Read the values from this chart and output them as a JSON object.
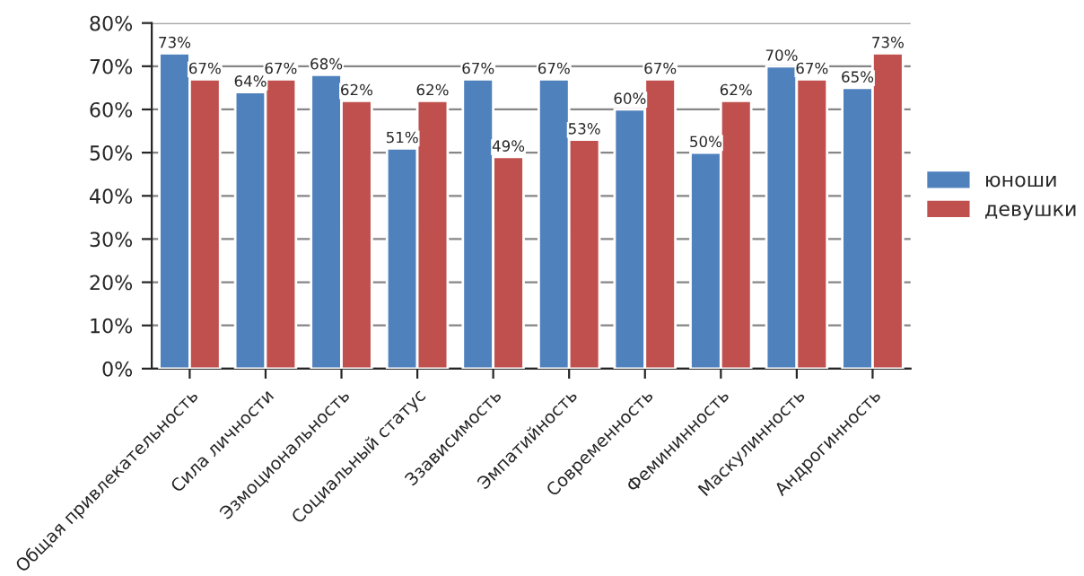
{
  "chart_data": {
    "type": "bar",
    "categories": [
      "Общая привлекательность",
      "Сила личности",
      "Эзмоциональность",
      "Социальный статус",
      "Ззависимость",
      "Эмпатийность",
      "Современность",
      "Фемининность",
      "Маскулинность",
      "Андрогинность"
    ],
    "series": [
      {
        "name": "юноши",
        "color": "#4f81bd",
        "values": [
          73,
          64,
          68,
          51,
          67,
          67,
          60,
          50,
          70,
          65
        ],
        "value_labels": [
          "73%",
          "64%",
          "68%",
          "51%",
          "67%",
          "67%",
          "60%",
          "50%",
          "70%",
          "65%"
        ]
      },
      {
        "name": "девушки",
        "color": "#c0504d",
        "values": [
          67,
          67,
          62,
          62,
          49,
          53,
          67,
          62,
          67,
          73
        ],
        "value_labels": [
          "67%",
          "67%",
          "62%",
          "62%",
          "49%",
          "53%",
          "67%",
          "62%",
          "67%",
          "73%"
        ]
      }
    ],
    "ylim": [
      0,
      80
    ],
    "yticks": [
      {
        "value": 0,
        "label": "0%"
      },
      {
        "value": 10,
        "label": "10%"
      },
      {
        "value": 20,
        "label": "20%"
      },
      {
        "value": 30,
        "label": "30%"
      },
      {
        "value": 40,
        "label": "40%"
      },
      {
        "value": 50,
        "label": "50%"
      },
      {
        "value": 60,
        "label": "60%"
      },
      {
        "value": 70,
        "label": "70%"
      },
      {
        "value": 80,
        "label": "80%"
      }
    ],
    "grid": "y",
    "legend": "right"
  }
}
